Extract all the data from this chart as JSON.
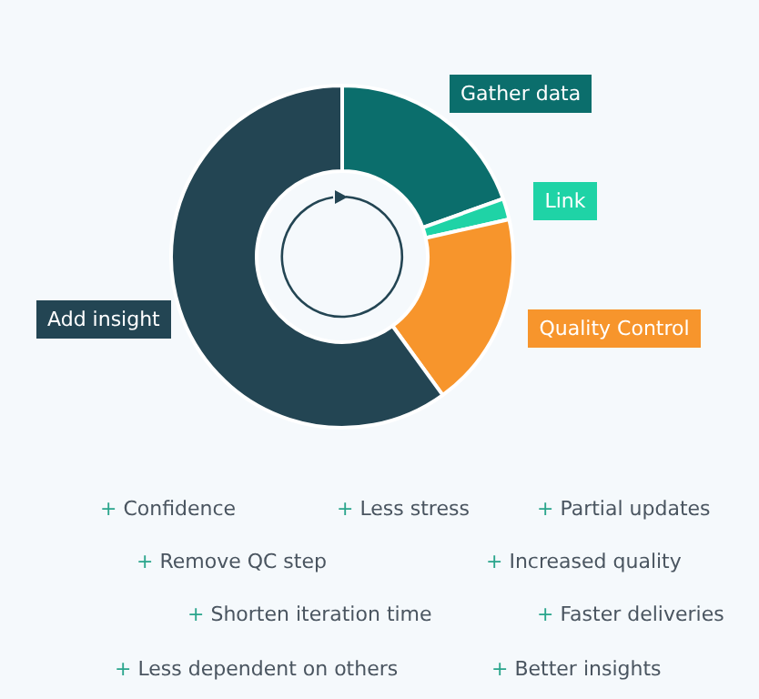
{
  "chart_data": {
    "type": "donut",
    "categories": [
      "Gather data",
      "Link",
      "Quality Control",
      "Add insight"
    ],
    "values": [
      19.5,
      2,
      18.5,
      60
    ],
    "colors": [
      "#0b6e6c",
      "#1fd3a6",
      "#f7952c",
      "#234553"
    ],
    "legend": false,
    "annotations": [
      "+ Confidence",
      "+ Less stress",
      "+ Partial updates",
      "+ Remove QC step",
      "+ Increased quality",
      "+ Shorten iteration time",
      "+ Faster deliveries",
      "+ Less dependent on others",
      "+ Better insights"
    ]
  }
}
